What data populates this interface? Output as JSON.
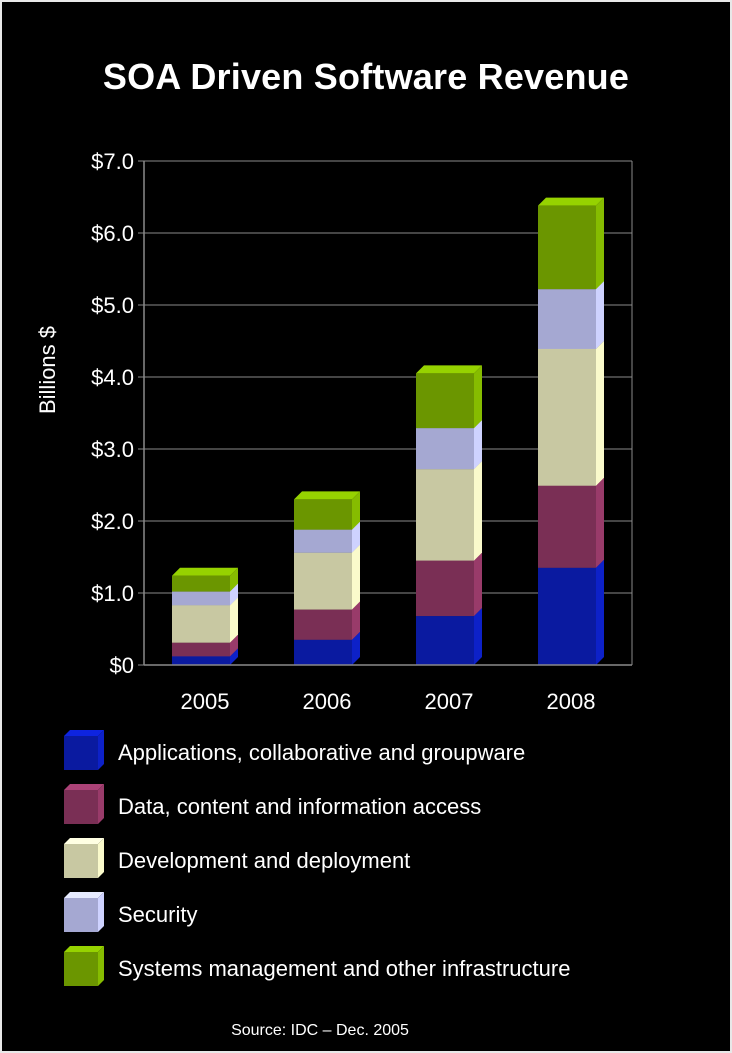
{
  "title": "SOA Driven Software Revenue",
  "source": "Source: IDC – Dec. 2005",
  "chart_data": {
    "type": "bar",
    "stacked": true,
    "title": "SOA Driven Software Revenue",
    "xlabel": "",
    "ylabel": "Billions $",
    "ylim": [
      0,
      7
    ],
    "yticks": [
      0,
      1,
      2,
      3,
      4,
      5,
      6,
      7
    ],
    "ytick_labels": [
      "$0",
      "$1.0",
      "$2.0",
      "$3.0",
      "$4.0",
      "$5.0",
      "$6.0",
      "$7.0"
    ],
    "categories": [
      "2005",
      "2006",
      "2007",
      "2008"
    ],
    "grid": true,
    "legend_position": "bottom",
    "series": [
      {
        "name": "Applications, collaborative and groupware",
        "color": "#0a1aa0",
        "values": [
          0.12,
          0.35,
          0.68,
          1.35
        ]
      },
      {
        "name": "Data, content and information access",
        "color": "#7a2f55",
        "values": [
          0.19,
          0.42,
          0.77,
          1.14
        ]
      },
      {
        "name": "Development and deployment",
        "color": "#c8c8a2",
        "values": [
          0.52,
          0.79,
          1.27,
          1.9
        ]
      },
      {
        "name": "Security",
        "color": "#a5a8d2",
        "values": [
          0.19,
          0.32,
          0.57,
          0.83
        ]
      },
      {
        "name": "Systems management and other infrastructure",
        "color": "#6b9600",
        "values": [
          0.22,
          0.42,
          0.76,
          1.16
        ]
      }
    ]
  }
}
